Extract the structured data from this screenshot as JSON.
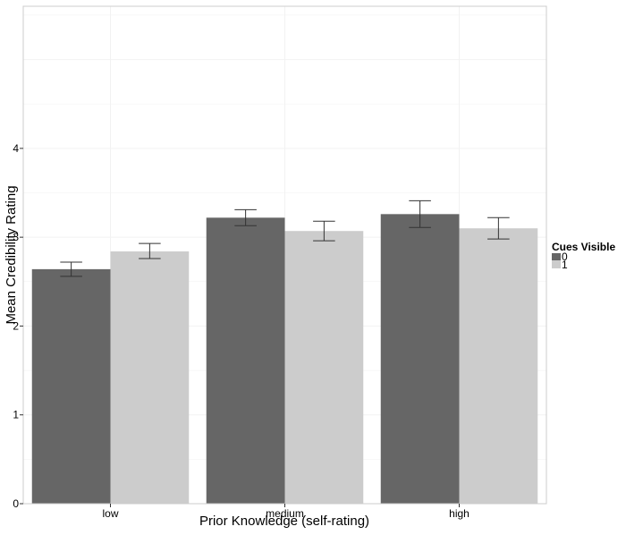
{
  "chart_data": {
    "type": "bar",
    "title": "",
    "xlabel": "Prior Knowledge (self-rating)",
    "ylabel": "Mean Credibility Rating",
    "categories": [
      "low",
      "medium",
      "high"
    ],
    "ylim": [
      0,
      5.6
    ],
    "yticks": [
      0,
      1,
      2,
      3,
      4
    ],
    "grid": true,
    "legend": {
      "title": "Cues Visible",
      "placement": "right"
    },
    "series": [
      {
        "name": "0",
        "color": "#666666",
        "values": [
          2.64,
          3.22,
          3.26
        ],
        "error_low": [
          2.56,
          3.13,
          3.11
        ],
        "error_high": [
          2.72,
          3.31,
          3.41
        ]
      },
      {
        "name": "1",
        "color": "#cccccc",
        "values": [
          2.84,
          3.07,
          3.1
        ],
        "error_low": [
          2.76,
          2.96,
          2.98
        ],
        "error_high": [
          2.93,
          3.18,
          3.22
        ]
      }
    ],
    "error_bar_color": "#333333",
    "panel_border_color": "#cccccc",
    "grid_color": "#f2f2f2"
  }
}
